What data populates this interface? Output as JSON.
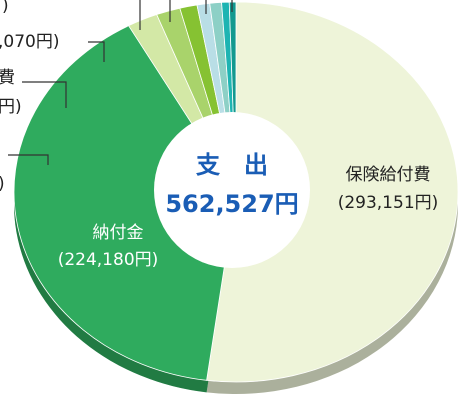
{
  "chart_data": {
    "type": "pie",
    "center_title": "支　出",
    "total": 562527,
    "total_label": "562,527円",
    "categories": [
      "保険給付費",
      "納付金",
      null,
      "費",
      null,
      null,
      null,
      null,
      null
    ],
    "values": [
      293151,
      224180,
      12500,
      9800,
      7070,
      5200,
      4800,
      3100,
      2726
    ],
    "value_labels": [
      "(293,151円)",
      "(224,180円)",
      ")",
      "円)",
      ",070円)",
      ")",
      null,
      null,
      null
    ],
    "colors": [
      "#eef4d9",
      "#2fab5e",
      "#d3e8a6",
      "#a9d36b",
      "#86c232",
      "#b9dee6",
      "#8dd0c6",
      "#1db4b2",
      "#12998f"
    ]
  }
}
